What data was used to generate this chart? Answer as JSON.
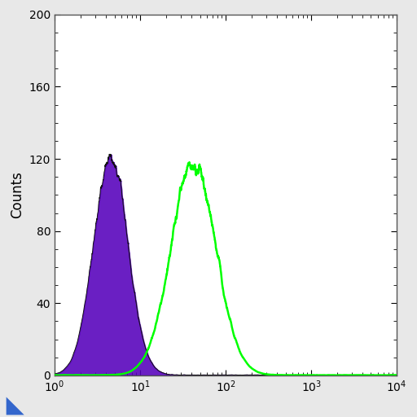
{
  "title": "",
  "xlabel": "",
  "ylabel": "Counts",
  "xlim": [
    1,
    10000
  ],
  "ylim": [
    0,
    200
  ],
  "yticks": [
    0,
    40,
    80,
    120,
    160,
    200
  ],
  "bg_color": "#e8e8e8",
  "plot_bg_color": "#ffffff",
  "purple_color": "#5500bb",
  "purple_edge_color": "#111111",
  "green_color": "#00ff00",
  "purple_peak_x": 4.5,
  "purple_peak_y": 122,
  "green_peak_x": 42,
  "green_peak_y": 118,
  "purple_sigma_log": 0.2,
  "green_sigma_log": 0.26,
  "triangle_color": "#3366cc"
}
